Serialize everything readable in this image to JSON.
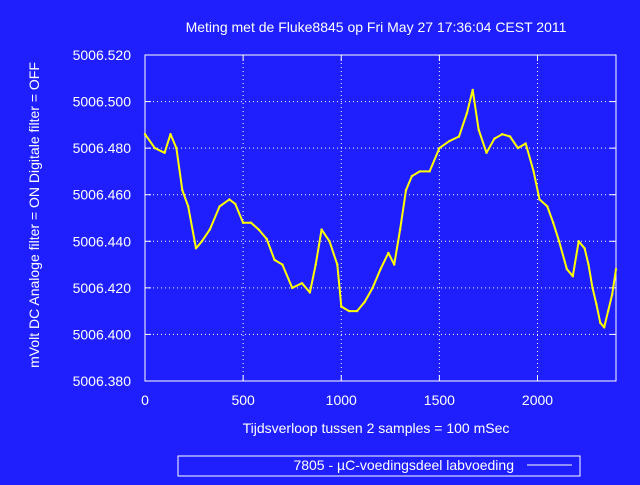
{
  "colors": {
    "background": "#1f1ffd",
    "text": "#ffffff",
    "grid": "#ffffff",
    "series": "#ffff00"
  },
  "chart_data": {
    "type": "line",
    "title": "Meting met de Fluke8845 op Fri May 27 17:36:04 CEST 2011",
    "xlabel": "Tijdsverloop tussen 2 samples = 100 mSec",
    "ylabel": "mVolt DC   Analoge filter = ON   Digitale filter = OFF",
    "xlim": [
      0,
      2400
    ],
    "ylim": [
      5006.38,
      5006.52
    ],
    "x_ticks": [
      0,
      500,
      1000,
      1500,
      2000
    ],
    "x_tick_labels": [
      "0",
      "500",
      "1000",
      "1500",
      "2000"
    ],
    "y_ticks": [
      5006.38,
      5006.4,
      5006.42,
      5006.44,
      5006.46,
      5006.48,
      5006.5,
      5006.52
    ],
    "y_tick_labels": [
      "5006.380",
      "5006.400",
      "5006.420",
      "5006.440",
      "5006.460",
      "5006.480",
      "5006.500",
      "5006.520"
    ],
    "grid": true,
    "legend_position": "bottom-center",
    "series": [
      {
        "name": "7805 - µC-voedingsdeel labvoeding",
        "color": "#ffff00",
        "x": [
          0,
          50,
          100,
          130,
          160,
          190,
          220,
          260,
          290,
          330,
          380,
          430,
          460,
          500,
          540,
          580,
          620,
          660,
          700,
          750,
          800,
          840,
          870,
          900,
          940,
          980,
          1000,
          1040,
          1080,
          1120,
          1160,
          1200,
          1240,
          1270,
          1300,
          1330,
          1360,
          1400,
          1450,
          1500,
          1550,
          1600,
          1640,
          1670,
          1700,
          1740,
          1780,
          1820,
          1860,
          1900,
          1940,
          1980,
          2010,
          2050,
          2080,
          2110,
          2150,
          2180,
          2210,
          2240,
          2260,
          2280,
          2300,
          2320,
          2340,
          2360,
          2380,
          2400
        ],
        "y": [
          5006.486,
          5006.48,
          5006.478,
          5006.486,
          5006.48,
          5006.462,
          5006.455,
          5006.437,
          5006.44,
          5006.445,
          5006.455,
          5006.458,
          5006.456,
          5006.448,
          5006.448,
          5006.445,
          5006.441,
          5006.432,
          5006.43,
          5006.42,
          5006.422,
          5006.418,
          5006.43,
          5006.445,
          5006.44,
          5006.43,
          5006.412,
          5006.41,
          5006.41,
          5006.414,
          5006.42,
          5006.428,
          5006.435,
          5006.43,
          5006.445,
          5006.462,
          5006.468,
          5006.47,
          5006.47,
          5006.48,
          5006.483,
          5006.485,
          5006.495,
          5006.505,
          5006.488,
          5006.478,
          5006.484,
          5006.486,
          5006.485,
          5006.48,
          5006.482,
          5006.47,
          5006.458,
          5006.455,
          5006.448,
          5006.44,
          5006.428,
          5006.425,
          5006.44,
          5006.437,
          5006.43,
          5006.42,
          5006.413,
          5006.405,
          5006.403,
          5006.41,
          5006.417,
          5006.428
        ]
      }
    ]
  }
}
